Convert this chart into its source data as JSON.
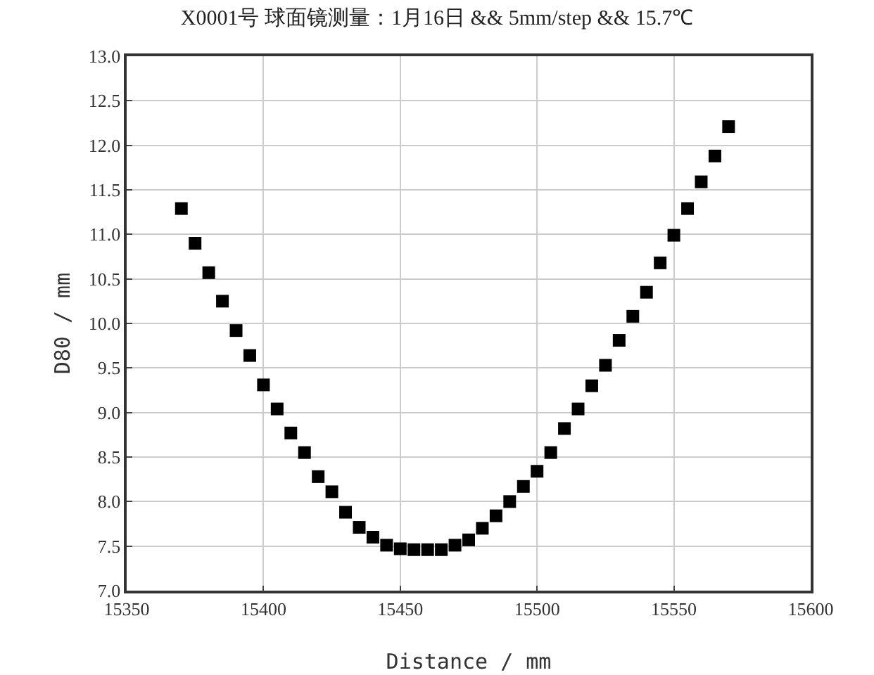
{
  "chart_data": {
    "type": "scatter",
    "title": "X0001号 球面镜测量：1月16日 && 5mm/step && 15.7℃",
    "xlabel": "Distance / mm",
    "ylabel": "D80 / mm",
    "x": [
      15370,
      15375,
      15380,
      15385,
      15390,
      15395,
      15400,
      15405,
      15410,
      15415,
      15420,
      15425,
      15430,
      15435,
      15440,
      15445,
      15450,
      15455,
      15460,
      15465,
      15470,
      15475,
      15480,
      15485,
      15490,
      15495,
      15500,
      15505,
      15510,
      15515,
      15520,
      15525,
      15530,
      15535,
      15540,
      15545,
      15550,
      15555,
      15560,
      15565,
      15570
    ],
    "series": [
      {
        "color": "#000000",
        "values": [
          11.29,
          10.9,
          10.57,
          10.25,
          9.92,
          9.64,
          9.31,
          9.04,
          8.77,
          8.55,
          8.28,
          8.11,
          7.88,
          7.71,
          7.6,
          7.51,
          7.47,
          7.46,
          7.46,
          7.46,
          7.51,
          7.57,
          7.7,
          7.84,
          8.0,
          8.17,
          8.34,
          8.55,
          8.82,
          9.04,
          9.3,
          9.53,
          9.81,
          10.08,
          10.35,
          10.68,
          10.99,
          11.29,
          11.59,
          11.88,
          12.21
        ]
      }
    ],
    "xlim": [
      15350,
      15600
    ],
    "xticks": [
      15350,
      15400,
      15450,
      15500,
      15550,
      15600
    ],
    "ylim": [
      7,
      13
    ],
    "yticks": [
      {
        "value": 7,
        "label": "7.0"
      },
      {
        "value": 7.5,
        "label": "7.5"
      },
      {
        "value": 8,
        "label": "8.0"
      },
      {
        "value": 8.5,
        "label": "8.5"
      },
      {
        "value": 9,
        "label": "9.0"
      },
      {
        "value": 9.5,
        "label": "9.5"
      },
      {
        "value": 10,
        "label": "10.0"
      },
      {
        "value": 10.5,
        "label": "10.5"
      },
      {
        "value": 11,
        "label": "11.0"
      },
      {
        "value": 11.5,
        "label": "11.5"
      },
      {
        "value": 12,
        "label": "12.0"
      },
      {
        "value": 12.5,
        "label": "12.5"
      },
      {
        "value": 13,
        "label": "13.0"
      }
    ],
    "grid": true,
    "marker": "square",
    "legend": false
  }
}
